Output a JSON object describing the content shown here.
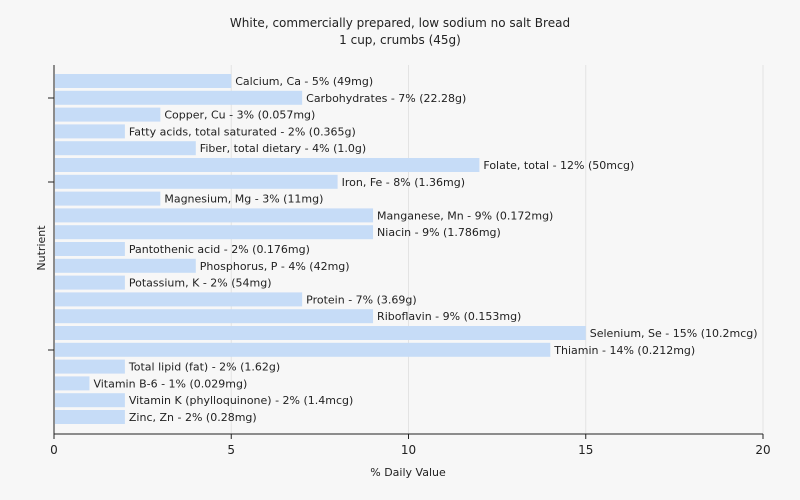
{
  "chart_data": {
    "type": "bar",
    "orientation": "horizontal",
    "title": "White, commercially prepared, low sodium no salt Bread",
    "subtitle": "1 cup, crumbs (45g)",
    "xlabel": "% Daily Value",
    "ylabel": "Nutrient",
    "xlim": [
      0,
      20
    ],
    "xticks": [
      0,
      5,
      10,
      15,
      20
    ],
    "grid": "vertical",
    "bar_color": "#c6dcf7",
    "categories": [
      "Calcium, Ca",
      "Carbohydrates",
      "Copper, Cu",
      "Fatty acids, total saturated",
      "Fiber, total dietary",
      "Folate, total",
      "Iron, Fe",
      "Magnesium, Mg",
      "Manganese, Mn",
      "Niacin",
      "Pantothenic acid",
      "Phosphorus, P",
      "Potassium, K",
      "Protein",
      "Riboflavin",
      "Selenium, Se",
      "Thiamin",
      "Total lipid (fat)",
      "Vitamin B-6",
      "Vitamin K (phylloquinone)",
      "Zinc, Zn"
    ],
    "values": [
      5,
      7,
      3,
      2,
      4,
      12,
      8,
      3,
      9,
      9,
      2,
      4,
      2,
      7,
      9,
      15,
      14,
      2,
      1,
      2,
      2
    ],
    "labels": [
      "Calcium, Ca - 5% (49mg)",
      "Carbohydrates - 7% (22.28g)",
      "Copper, Cu - 3% (0.057mg)",
      "Fatty acids, total saturated - 2% (0.365g)",
      "Fiber, total dietary - 4% (1.0g)",
      "Folate, total - 12% (50mcg)",
      "Iron, Fe - 8% (1.36mg)",
      "Magnesium, Mg - 3% (11mg)",
      "Manganese, Mn - 9% (0.172mg)",
      "Niacin - 9% (1.786mg)",
      "Pantothenic acid - 2% (0.176mg)",
      "Phosphorus, P - 4% (42mg)",
      "Potassium, K - 2% (54mg)",
      "Protein - 7% (3.69g)",
      "Riboflavin - 9% (0.153mg)",
      "Selenium, Se - 15% (10.2mcg)",
      "Thiamin - 14% (0.212mg)",
      "Total lipid (fat) - 2% (1.62g)",
      "Vitamin B-6 - 1% (0.029mg)",
      "Vitamin K (phylloquinone) - 2% (1.4mcg)",
      "Zinc, Zn - 2% (0.28mg)"
    ]
  }
}
